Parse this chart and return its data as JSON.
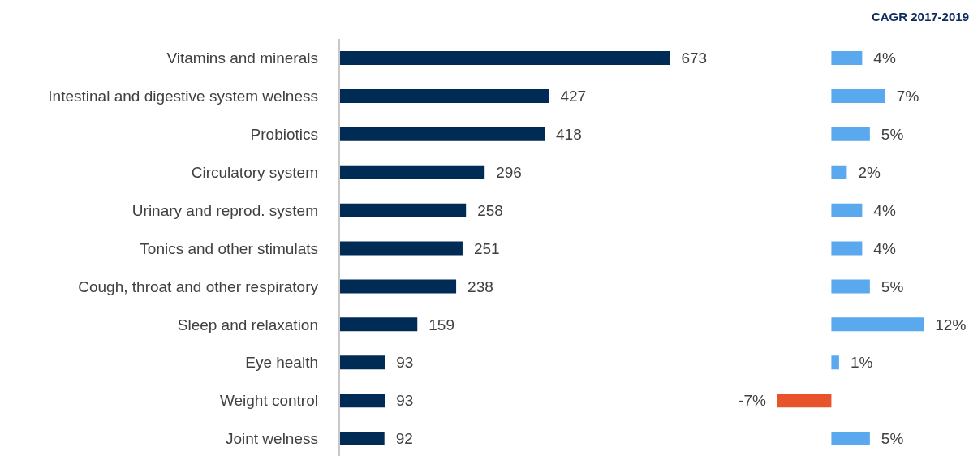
{
  "chart_data": [
    {
      "type": "bar",
      "orientation": "horizontal",
      "categories": [
        "Vitamins and minerals",
        "Intestinal and digestive system welness",
        "Probiotics",
        "Circulatory system",
        "Urinary and reprod. system",
        "Tonics and other stimulats",
        "Cough, throat and other respiratory",
        "Sleep and relaxation",
        "Eye health",
        "Weight control",
        "Joint welness"
      ],
      "values": [
        673,
        427,
        418,
        296,
        258,
        251,
        238,
        159,
        93,
        93,
        92
      ],
      "color": "#002b54",
      "data_labels": true
    },
    {
      "type": "bar",
      "orientation": "horizontal",
      "title": "CAGR 2017-2019",
      "categories": [
        null,
        null,
        null,
        null,
        null,
        null,
        null,
        null,
        null,
        null,
        null
      ],
      "values": [
        4,
        7,
        5,
        2,
        4,
        4,
        5,
        12,
        1,
        -7,
        5
      ],
      "colors": [
        "#5aa9ee",
        "#5aa9ee",
        "#5aa9ee",
        "#5aa9ee",
        "#5aa9ee",
        "#5aa9ee",
        "#5aa9ee",
        "#5aa9ee",
        "#5aa9ee",
        "#e8532b",
        "#5aa9ee"
      ],
      "value_labels": [
        "4%",
        "7%",
        "5%",
        "2%",
        "4%",
        "4%",
        "5%",
        "12%",
        "1%",
        "-7%",
        "5%"
      ]
    }
  ]
}
